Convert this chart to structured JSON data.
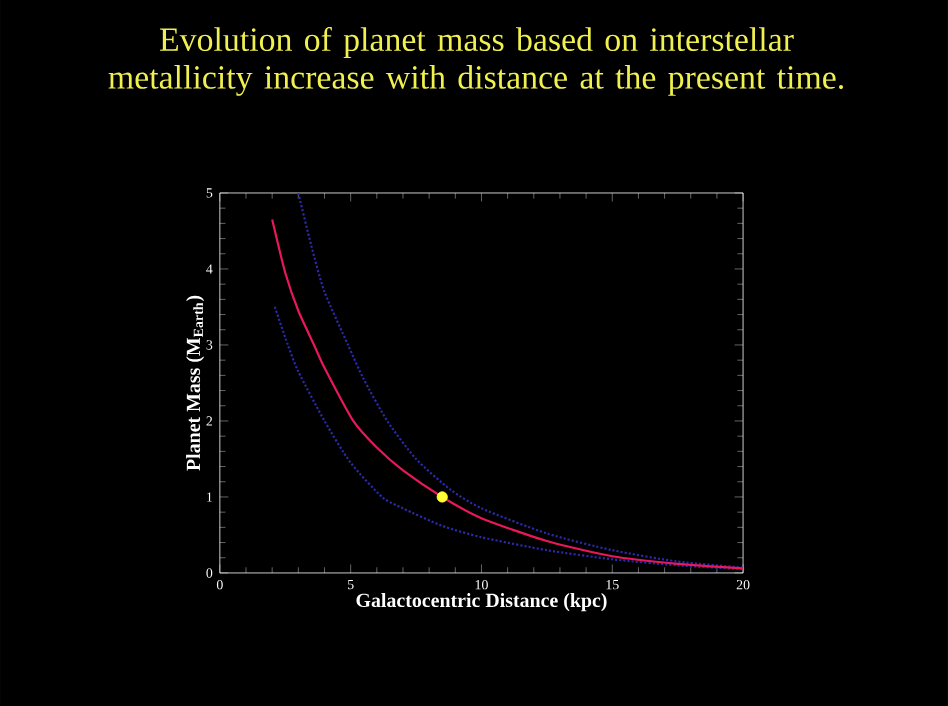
{
  "chart_data": {
    "type": "line",
    "title": "Evolution of planet mass based on interstellar metallicity increase with distance at the present time.",
    "xlabel": "Galactocentric Distance (kpc)",
    "ylabel": "Planet Mass (M$_{Earth}$)",
    "xlim": [
      0,
      20
    ],
    "ylim": [
      0,
      5
    ],
    "xticks": [
      0,
      5,
      10,
      15,
      20
    ],
    "yticks": [
      0,
      1,
      2,
      3,
      4,
      5
    ],
    "grid": false,
    "marker": "none",
    "series": [
      {
        "color": "#2a2aa8",
        "line_style": "dotted",
        "x": [
          3,
          3.5,
          4,
          4.9,
          5.5,
          6.4,
          7.5,
          8.8,
          10,
          12.5,
          15,
          17.5,
          20
        ],
        "values": [
          5.0,
          4.3,
          3.7,
          3.0,
          2.55,
          2.0,
          1.5,
          1.1,
          0.85,
          0.52,
          0.3,
          0.15,
          0.07
        ]
      },
      {
        "color": "#2a2aa8",
        "line_style": "dotted",
        "x": [
          2.1,
          2.6,
          3,
          4,
          5,
          6.2,
          7,
          8.5,
          10,
          12.5,
          15,
          17.5,
          20
        ],
        "values": [
          3.5,
          3.0,
          2.65,
          2.0,
          1.45,
          1.0,
          0.85,
          0.62,
          0.47,
          0.3,
          0.18,
          0.1,
          0.05
        ]
      },
      {
        "color": "#e8185a",
        "line_style": "solid",
        "x": [
          2,
          2.5,
          3,
          3.6,
          4,
          5.1,
          6,
          7,
          8.5,
          10,
          12.5,
          15,
          17.5,
          20
        ],
        "values": [
          4.65,
          3.95,
          3.45,
          3.0,
          2.7,
          2.0,
          1.65,
          1.35,
          1.0,
          0.72,
          0.42,
          0.22,
          0.12,
          0.06
        ]
      },
      {
        "type": "scatter",
        "marker": "circle",
        "color": "#ffff33",
        "x": [
          8.5
        ],
        "values": [
          1.0
        ]
      }
    ]
  }
}
